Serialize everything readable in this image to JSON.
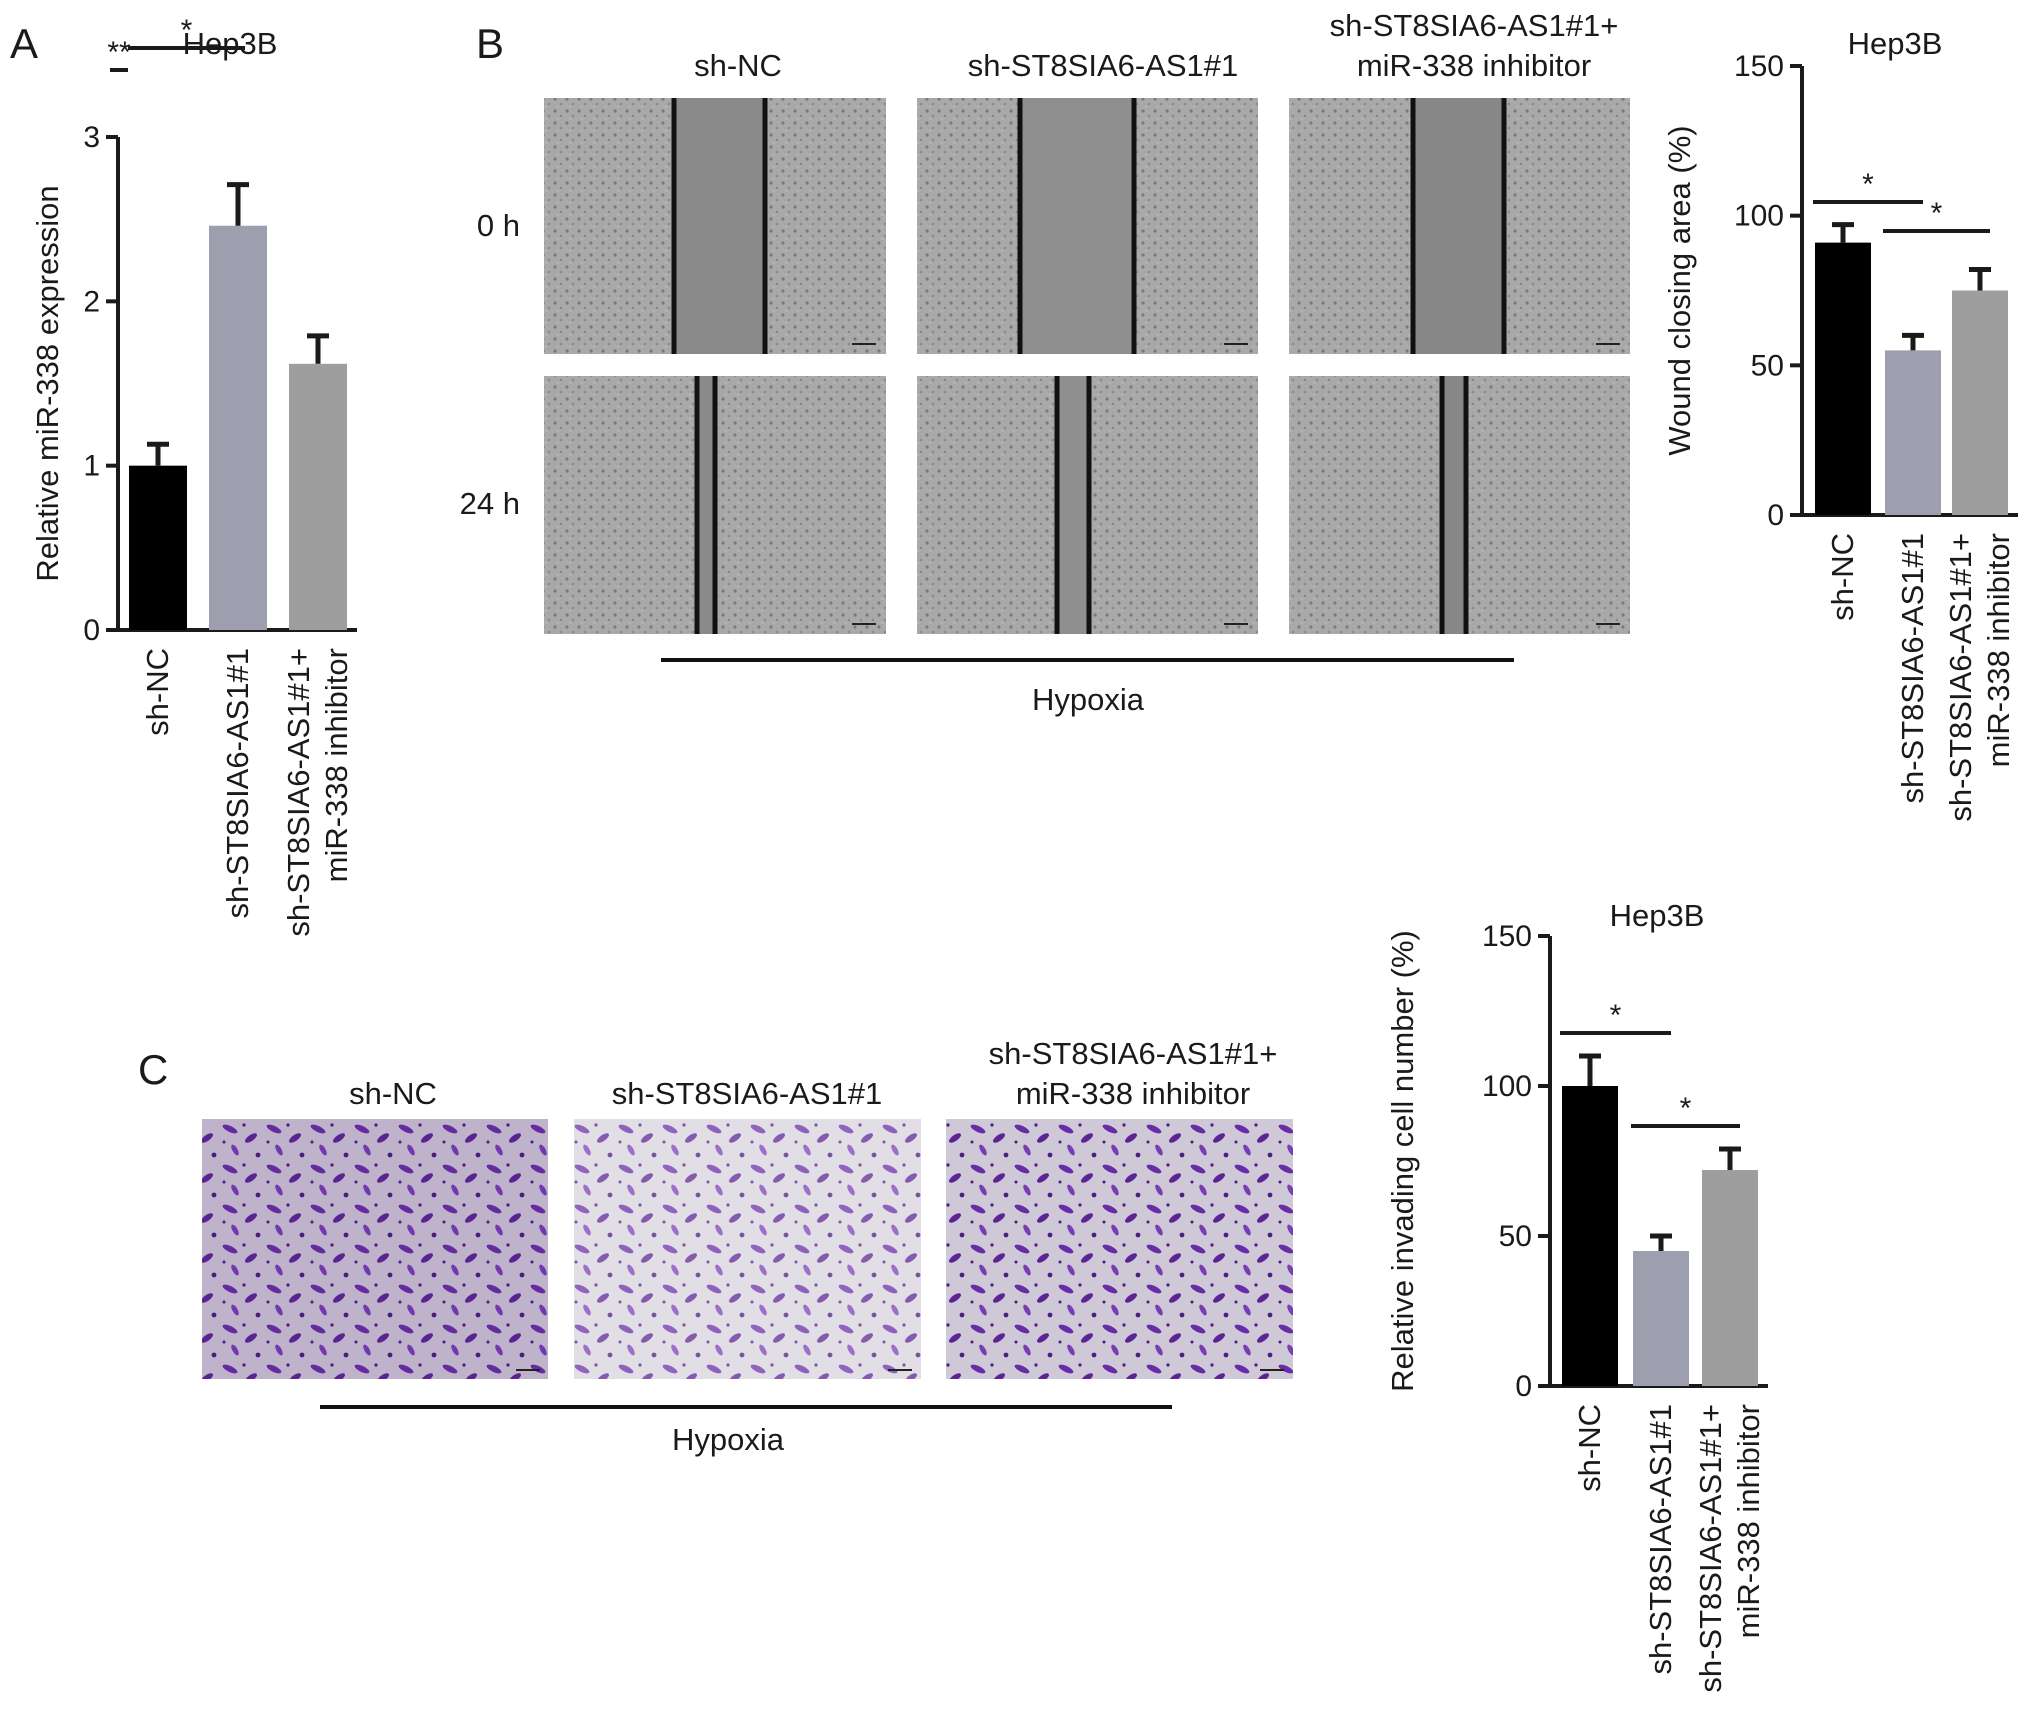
{
  "panels": {
    "a": {
      "letter": "A"
    },
    "b": {
      "letter": "B",
      "columns": [
        "sh-NC",
        "sh-ST8SIA6-AS1#1",
        "sh-ST8SIA6-AS1#1+",
        "miR-338 inhibitor"
      ],
      "row_labels": [
        "0 h",
        "24 h"
      ],
      "condition": "Hypoxia"
    },
    "c": {
      "letter": "C",
      "columns": [
        "sh-NC",
        "sh-ST8SIA6-AS1#1",
        "sh-ST8SIA6-AS1#1+",
        "miR-338 inhibitor"
      ],
      "condition": "Hypoxia"
    }
  },
  "colors": {
    "black": "#000000",
    "dark_grey": "#9d9fae",
    "grey": "#9e9e9e",
    "cells_purple": "#6a2ea8",
    "scratch_grey": "#8a8a8a"
  },
  "chart_data": [
    {
      "id": "A",
      "type": "bar",
      "title": "Hep3B",
      "ylabel": "Relative miR-338 expression",
      "xlabel": "",
      "ylim": [
        0,
        3
      ],
      "yticks": [
        0,
        1,
        2,
        3
      ],
      "categories": [
        "sh-NC",
        "sh-ST8SIA6-AS1#1",
        "sh-ST8SIA6-AS1#1+ miR-338 inhibitor"
      ],
      "category_lines": [
        [
          "sh-NC"
        ],
        [
          "sh-ST8SIA6-AS1#1"
        ],
        [
          "sh-ST8SIA6-AS1#1+",
          "miR-338 inhibitor"
        ]
      ],
      "values": [
        1.0,
        2.46,
        1.62
      ],
      "errors": [
        0.13,
        0.25,
        0.17
      ],
      "bar_colors": [
        "#000000",
        "#9d9fae",
        "#9e9e9e"
      ],
      "significance": [
        {
          "from": 0,
          "to": 1,
          "label": "**"
        },
        {
          "from": 1,
          "to": 2,
          "label": "*"
        }
      ]
    },
    {
      "id": "B",
      "type": "bar",
      "title": "Hep3B",
      "ylabel": "Wound closing area (%)",
      "xlabel": "",
      "ylim": [
        0,
        150
      ],
      "yticks": [
        0,
        50,
        100,
        150
      ],
      "categories": [
        "sh-NC",
        "sh-ST8SIA6-AS1#1",
        "sh-ST8SIA6-AS1#1+ miR-338 inhibitor"
      ],
      "category_lines": [
        [
          "sh-NC"
        ],
        [
          "sh-ST8SIA6-AS1#1"
        ],
        [
          "sh-ST8SIA6-AS1#1+",
          "miR-338 inhibitor"
        ]
      ],
      "values": [
        91,
        55,
        75
      ],
      "errors": [
        6,
        5,
        7
      ],
      "bar_colors": [
        "#000000",
        "#9d9fae",
        "#9e9e9e"
      ],
      "significance": [
        {
          "from": 0,
          "to": 1,
          "label": "*"
        },
        {
          "from": 1,
          "to": 2,
          "label": "*"
        }
      ]
    },
    {
      "id": "C",
      "type": "bar",
      "title": "Hep3B",
      "ylabel": "Relative invading cell number (%)",
      "xlabel": "",
      "ylim": [
        0,
        150
      ],
      "yticks": [
        0,
        50,
        100,
        150
      ],
      "categories": [
        "sh-NC",
        "sh-ST8SIA6-AS1#1",
        "sh-ST8SIA6-AS1#1+ miR-338 inhibitor"
      ],
      "category_lines": [
        [
          "sh-NC"
        ],
        [
          "sh-ST8SIA6-AS1#1"
        ],
        [
          "sh-ST8SIA6-AS1#1+",
          "miR-338 inhibitor"
        ]
      ],
      "values": [
        100,
        45,
        72
      ],
      "errors": [
        10,
        5,
        7
      ],
      "bar_colors": [
        "#000000",
        "#9d9fae",
        "#9e9e9e"
      ],
      "significance": [
        {
          "from": 0,
          "to": 1,
          "label": "*"
        },
        {
          "from": 1,
          "to": 2,
          "label": "*"
        }
      ]
    }
  ]
}
